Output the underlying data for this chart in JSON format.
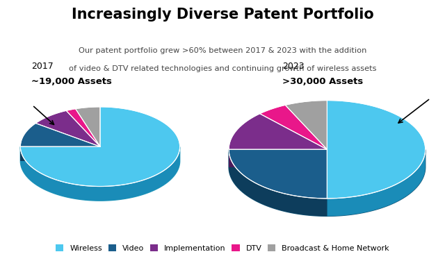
{
  "title": "Increasingly Diverse Patent Portfolio",
  "label_2017": "2017",
  "assets_2017": "~19,000 Assets",
  "label_2023": "2023",
  "assets_2023": ">30,000 Assets",
  "pie2017": [
    75,
    10,
    8,
    2,
    5
  ],
  "pie2023": [
    50,
    25,
    13,
    5,
    7
  ],
  "colors": [
    "#4DC8EF",
    "#1B5E8C",
    "#7B2D8B",
    "#E9178A",
    "#A0A0A0"
  ],
  "side_colors": [
    "#1A8CB8",
    "#0D3D5C",
    "#4A1A5A",
    "#A01060",
    "#606060"
  ],
  "base_color": "#2299BB",
  "base_color2": "#115577",
  "legend_labels": [
    "Wireless",
    "Video",
    "Implementation",
    "DTV",
    "Broadcast & Home Network"
  ],
  "bg_color": "#FFFFFF"
}
